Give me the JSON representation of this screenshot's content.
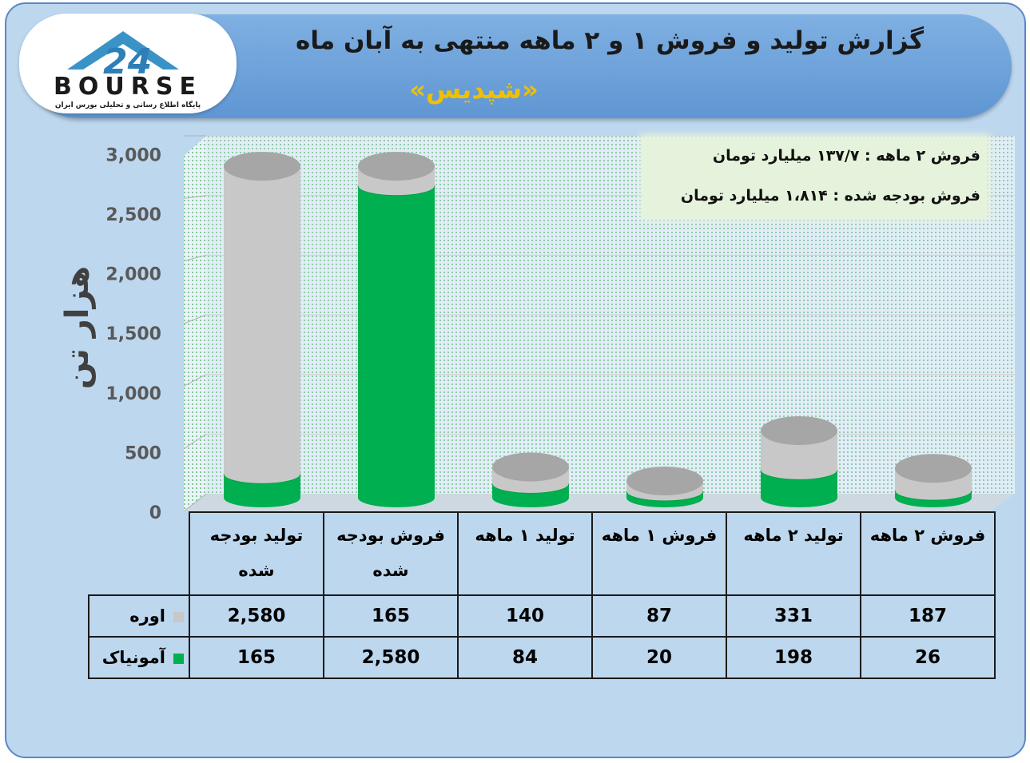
{
  "header": {
    "title": "گزارش تولید و فروش ۱ و ۲ ماهه منتهی به آبان ماه",
    "subtitle": "«شپدیس»",
    "logo_text": "BOURSE",
    "logo_number": "24",
    "logo_tagline": "پایگاه اطلاع رسانی و تحلیلی بورس ایران"
  },
  "info": {
    "line1": "فروش ۲ ماهه : ۱۳۷/۷ میلیارد تومان",
    "line2": "فروش بودجه شده : ۱،۸۱۴ میلیارد تومان"
  },
  "colors": {
    "urea": "#c8c8c8",
    "ammonia": "#00b050",
    "frame": "#bdd7ee",
    "header": "#6fa3dc",
    "subtitle": "#f0c000"
  },
  "chart_data": {
    "type": "bar",
    "stacked": true,
    "title": "گزارش تولید و فروش ۱ و ۲ ماهه منتهی به آبان ماه",
    "ylabel": "هزار تن",
    "ylim": [
      0,
      3000
    ],
    "yticks": [
      "0",
      "500",
      "1,000",
      "1,500",
      "2,000",
      "2,500",
      "3,000"
    ],
    "categories": [
      "تولید بودجه شده",
      "فروش بودجه شده",
      "تولید ۱ ماهه",
      "فروش ۱ ماهه",
      "تولید ۲ ماهه",
      "فروش ۲ ماهه"
    ],
    "series": [
      {
        "name": "آمونیاک",
        "color": "#00b050",
        "values": [
          165,
          2580,
          84,
          20,
          198,
          26
        ]
      },
      {
        "name": "اوره",
        "color": "#c8c8c8",
        "values": [
          2580,
          165,
          140,
          87,
          331,
          187
        ]
      }
    ],
    "value_labels": {
      "urea": [
        "2,580",
        "165",
        "140",
        "87",
        "331",
        "187"
      ],
      "ammonia": [
        "165",
        "2,580",
        "84",
        "20",
        "198",
        "26"
      ]
    },
    "grid": true
  }
}
